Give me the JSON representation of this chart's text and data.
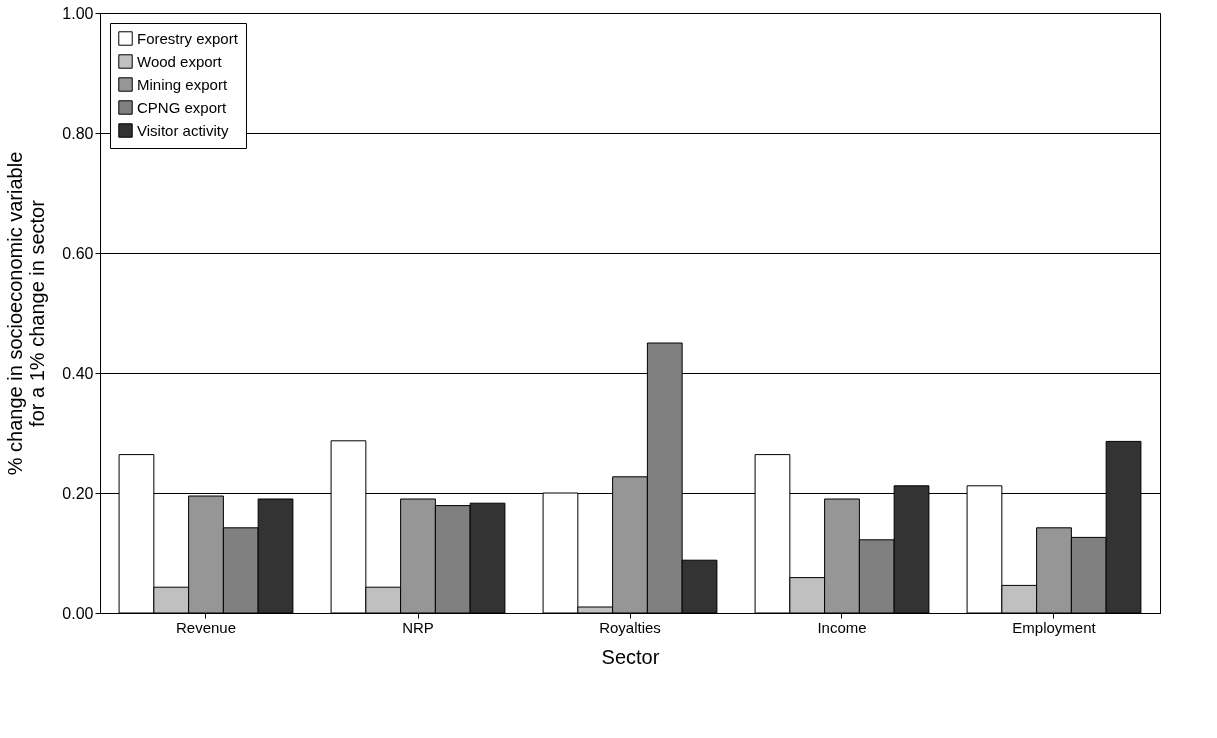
{
  "chart_data": {
    "type": "bar",
    "xlabel": "Sector",
    "ylabel": "% change in socioeconomic variable\nfor a 1% change in sector",
    "categories": [
      "Revenue",
      "NRP",
      "Royalties",
      "Income",
      "Employment"
    ],
    "series": [
      {
        "name": "Forestry export",
        "color": "#ffffff",
        "values": [
          0.264,
          0.287,
          0.2,
          0.264,
          0.212
        ]
      },
      {
        "name": "Wood export",
        "color": "#c0c0c0",
        "values": [
          0.043,
          0.043,
          0.01,
          0.059,
          0.046
        ]
      },
      {
        "name": "Mining export",
        "color": "#969696",
        "values": [
          0.195,
          0.19,
          0.227,
          0.19,
          0.142
        ]
      },
      {
        "name": "CPNG export",
        "color": "#808080",
        "values": [
          0.142,
          0.179,
          0.45,
          0.122,
          0.126
        ]
      },
      {
        "name": "Visitor activity",
        "color": "#333333",
        "values": [
          0.19,
          0.183,
          0.088,
          0.212,
          0.286
        ]
      }
    ],
    "ylim": [
      0,
      1
    ],
    "yticks": [
      {
        "value": 0,
        "label": "0.00"
      },
      {
        "value": 0.2,
        "label": "0.20"
      },
      {
        "value": 0.4,
        "label": "0.40"
      },
      {
        "value": 0.6,
        "label": "0.60"
      },
      {
        "value": 0.8,
        "label": "0.80"
      },
      {
        "value": 1,
        "label": "1.00"
      }
    ],
    "grid": "y",
    "legend": "top left"
  }
}
